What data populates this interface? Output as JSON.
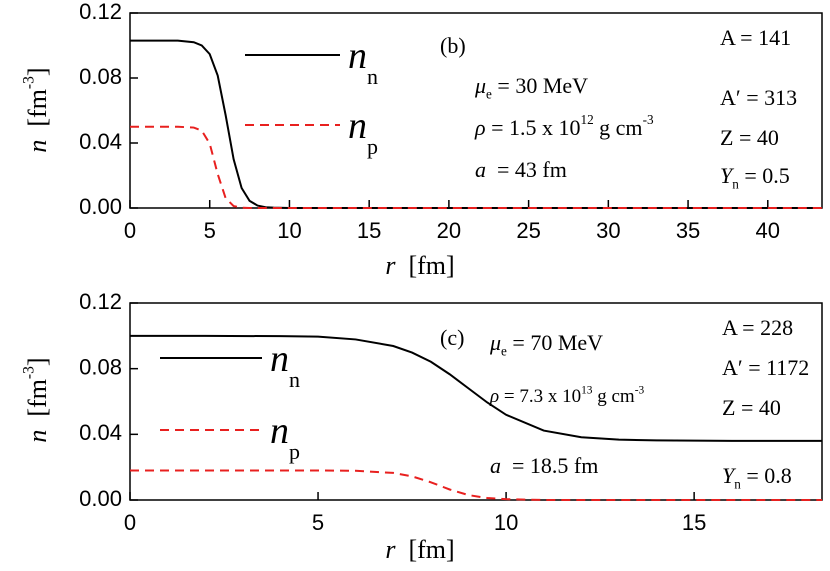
{
  "chart_data": [
    {
      "type": "line",
      "panel_label": "(b)",
      "xlabel": [
        {
          "text": "r",
          "style": "italic"
        },
        {
          "text": "  [fm]"
        }
      ],
      "ylabel": [
        {
          "text": "n",
          "style": "italic"
        },
        {
          "text": "  [fm"
        },
        {
          "text": "-3",
          "style": "sup"
        },
        {
          "text": "]"
        }
      ],
      "x": [
        0,
        1,
        2,
        3,
        4,
        4.5,
        5,
        5.5,
        6,
        6.5,
        7,
        7.5,
        8,
        8.5,
        9,
        10,
        15,
        20,
        25,
        30,
        35,
        40,
        43.4
      ],
      "series": [
        {
          "name": "n",
          "name_sub": "n",
          "color": "#000000",
          "dash": false,
          "values": [
            0.103,
            0.103,
            0.103,
            0.103,
            0.102,
            0.1,
            0.0947,
            0.0815,
            0.057,
            0.03,
            0.0123,
            0.0044,
            0.0015,
            0.0005,
            0.0002,
            0,
            0,
            0,
            0,
            0,
            0,
            0,
            0
          ]
        },
        {
          "name": "n",
          "name_sub": "p",
          "color": "#e8201f",
          "dash": true,
          "values": [
            0.05,
            0.05,
            0.05,
            0.05,
            0.0495,
            0.0476,
            0.0396,
            0.0209,
            0.006,
            0.0012,
            0.0002,
            0,
            0,
            0,
            0,
            0,
            0,
            0,
            0,
            0,
            0,
            0,
            0
          ]
        }
      ],
      "xlim": [
        0,
        43.4
      ],
      "ylim": [
        0,
        0.12
      ],
      "xticks": [
        0,
        5,
        10,
        15,
        20,
        25,
        30,
        35,
        40
      ],
      "yticks": [
        {
          "value": 0,
          "label": "0.00"
        },
        0.04,
        0.08,
        0.12
      ],
      "annotations": [
        [
          {
            "text": "μ",
            "style": "italic"
          },
          {
            "text": "e",
            "style": "sub"
          },
          {
            "text": " = 30 MeV"
          }
        ],
        [
          {
            "text": "ρ",
            "style": "italic"
          },
          {
            "text": " = 1.5 x 10"
          },
          {
            "text": "12",
            "style": "sup"
          },
          {
            "text": " g cm"
          },
          {
            "text": "-3",
            "style": "sup"
          }
        ],
        [
          {
            "text": "a",
            "style": "italic"
          },
          {
            "text": "  = 43 fm"
          }
        ],
        [
          {
            "text": "A = 141"
          }
        ],
        [
          {
            "text": "A′ = 313"
          }
        ],
        [
          {
            "text": "Z = 40"
          }
        ],
        [
          {
            "text": "Y",
            "style": "italic"
          },
          {
            "text": "n",
            "style": "sub"
          },
          {
            "text": " = 0.5"
          }
        ]
      ]
    },
    {
      "type": "line",
      "panel_label": "(c)",
      "xlabel": [
        {
          "text": "r",
          "style": "italic"
        },
        {
          "text": "  [fm]"
        }
      ],
      "ylabel": [
        {
          "text": "n",
          "style": "italic"
        },
        {
          "text": "  [fm"
        },
        {
          "text": "-3",
          "style": "sup"
        },
        {
          "text": "]"
        }
      ],
      "x": [
        0,
        2,
        4,
        5,
        6,
        7,
        7.5,
        8,
        8.5,
        9,
        9.5,
        10,
        11,
        12,
        13,
        14,
        16,
        18.4
      ],
      "series": [
        {
          "name": "n",
          "name_sub": "n",
          "color": "#000000",
          "dash": false,
          "values": [
            0.1,
            0.09997,
            0.0998,
            0.0995,
            0.0978,
            0.0938,
            0.0898,
            0.0842,
            0.0766,
            0.068,
            0.0594,
            0.0519,
            0.0423,
            0.0382,
            0.0368,
            0.0363,
            0.036,
            0.036
          ]
        },
        {
          "name": "n",
          "name_sub": "p",
          "color": "#e8201f",
          "dash": true,
          "values": [
            0.018,
            0.018,
            0.018,
            0.018,
            0.0178,
            0.0165,
            0.0144,
            0.0108,
            0.0064,
            0.003,
            0.0012,
            0.0005,
            0,
            0,
            0,
            0,
            0,
            0
          ]
        }
      ],
      "xlim": [
        0,
        18.4
      ],
      "ylim": [
        0,
        0.12
      ],
      "xticks": [
        0,
        5,
        10,
        15
      ],
      "yticks": [
        {
          "value": 0,
          "label": "0.00"
        },
        0.04,
        0.08,
        0.12
      ],
      "annotations": [
        [
          {
            "text": "μ",
            "style": "italic"
          },
          {
            "text": "e",
            "style": "sub"
          },
          {
            "text": " = 70 MeV"
          }
        ],
        [
          {
            "text": "ρ",
            "style": "italic"
          },
          {
            "text": " = 7.3 x 10"
          },
          {
            "text": "13",
            "style": "sup"
          },
          {
            "text": " g cm"
          },
          {
            "text": "-3",
            "style": "sup"
          }
        ],
        [
          {
            "text": "a",
            "style": "italic"
          },
          {
            "text": "  = 18.5 fm"
          }
        ],
        [
          {
            "text": "A = 228"
          }
        ],
        [
          {
            "text": "A′ = 1172"
          }
        ],
        [
          {
            "text": "Z = 40"
          }
        ],
        [
          {
            "text": "Y",
            "style": "italic"
          },
          {
            "text": "n",
            "style": "sub"
          },
          {
            "text": " = 0.8"
          }
        ]
      ]
    }
  ]
}
